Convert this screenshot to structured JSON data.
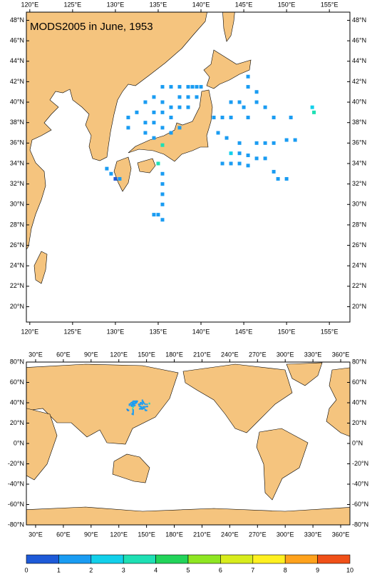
{
  "title": "MODS2005 in June, 1953",
  "regional_map": {
    "xlim": [
      119.6,
      157.4
    ],
    "ylim": [
      18.5,
      48.8
    ],
    "xticks": [
      {
        "value": 120,
        "label": "120°E"
      },
      {
        "value": 125,
        "label": "125°E"
      },
      {
        "value": 130,
        "label": "130°E"
      },
      {
        "value": 135,
        "label": "135°E"
      },
      {
        "value": 140,
        "label": "140°E"
      },
      {
        "value": 145,
        "label": "145°E"
      },
      {
        "value": 150,
        "label": "150°E"
      },
      {
        "value": 155,
        "label": "155°E"
      }
    ],
    "yticks": [
      {
        "value": 20,
        "label": "20°N"
      },
      {
        "value": 22,
        "label": "22°N"
      },
      {
        "value": 24,
        "label": "24°N"
      },
      {
        "value": 26,
        "label": "26°N"
      },
      {
        "value": 28,
        "label": "28°N"
      },
      {
        "value": 30,
        "label": "30°N"
      },
      {
        "value": 32,
        "label": "32°N"
      },
      {
        "value": 34,
        "label": "34°N"
      },
      {
        "value": 36,
        "label": "36°N"
      },
      {
        "value": 38,
        "label": "38°N"
      },
      {
        "value": 40,
        "label": "40°N"
      },
      {
        "value": 42,
        "label": "42°N"
      },
      {
        "value": 44,
        "label": "44°N"
      },
      {
        "value": 46,
        "label": "46°N"
      },
      {
        "value": 48,
        "label": "48°N"
      }
    ]
  },
  "global_map": {
    "xlim": [
      20,
      370
    ],
    "ylim": [
      -80,
      80
    ],
    "xticks": [
      {
        "value": 30,
        "label": "30°E"
      },
      {
        "value": 60,
        "label": "60°E"
      },
      {
        "value": 90,
        "label": "90°E"
      },
      {
        "value": 120,
        "label": "120°E"
      },
      {
        "value": 150,
        "label": "150°E"
      },
      {
        "value": 180,
        "label": "180°E"
      },
      {
        "value": 210,
        "label": "210°E"
      },
      {
        "value": 240,
        "label": "240°E"
      },
      {
        "value": 270,
        "label": "270°E"
      },
      {
        "value": 300,
        "label": "300°E"
      },
      {
        "value": 330,
        "label": "330°E"
      },
      {
        "value": 360,
        "label": "360°E"
      }
    ],
    "yticks": [
      {
        "value": -80,
        "label": "-80°N"
      },
      {
        "value": -60,
        "label": "-60°N"
      },
      {
        "value": -40,
        "label": "-40°N"
      },
      {
        "value": -20,
        "label": "-20°N"
      },
      {
        "value": 0,
        "label": "0°N"
      },
      {
        "value": 20,
        "label": "20°N"
      },
      {
        "value": 40,
        "label": "40°N"
      },
      {
        "value": 60,
        "label": "60°N"
      },
      {
        "value": 80,
        "label": "80°N"
      }
    ]
  },
  "colorbar": {
    "ticks": [
      0,
      1,
      2,
      3,
      4,
      5,
      6,
      7,
      8,
      9,
      10
    ],
    "colors": [
      "#1e5ad8",
      "#1a9cf2",
      "#12d0ea",
      "#1ee0b4",
      "#22d45a",
      "#8ee622",
      "#d8ec1c",
      "#fff020",
      "#ffa21c",
      "#f05018"
    ]
  },
  "observations": {
    "lon": [
      135.5,
      136.5,
      137.5,
      138.5,
      139,
      139.5,
      140,
      137.5,
      138.5,
      139.5,
      134.5,
      133.5,
      135.5,
      136.5,
      137.5,
      138.5,
      132.5,
      134.5,
      135.5,
      136.5,
      131.5,
      133.5,
      134.5,
      135.5,
      137.5,
      136.5,
      133.5,
      134.5,
      131.5,
      145.5,
      145.5,
      146.5,
      146.5,
      143.5,
      144.5,
      145,
      147.5,
      141.5,
      142.5,
      143.5,
      145.5,
      148.5,
      150.5,
      142,
      143,
      144.5,
      146.5,
      147.5,
      148.5,
      150,
      151,
      143.5,
      144.5,
      145.5,
      146.5,
      147.5,
      142.5,
      143.5,
      144.5,
      145.5,
      148.5,
      149,
      150,
      135.5,
      135.5,
      135.5,
      135.5,
      135,
      135.5,
      134.5,
      129,
      129.5,
      130,
      130.5,
      135,
      135.5,
      153,
      153.2
    ],
    "lat": [
      41.5,
      41.5,
      41.5,
      41.5,
      41.5,
      41.5,
      41.5,
      40.5,
      40.5,
      40.5,
      40.5,
      40,
      40,
      39.5,
      39.5,
      39.5,
      39,
      39,
      39,
      38.5,
      38.5,
      38,
      38,
      37.5,
      37.5,
      37,
      37,
      36.5,
      37.5,
      42.5,
      41.5,
      41,
      40,
      40,
      40,
      39.5,
      39.5,
      38.5,
      38.5,
      38.5,
      38.5,
      38.5,
      38.5,
      37,
      36.5,
      36,
      36,
      36,
      36,
      36.3,
      36.3,
      35,
      35,
      34.8,
      34.5,
      34.5,
      34,
      34,
      34,
      33.8,
      33.2,
      32.5,
      32.5,
      33,
      32,
      31,
      30,
      29,
      28.5,
      29,
      33.5,
      33,
      32.5,
      32.5,
      34,
      35.8,
      39.5,
      39
    ],
    "values": [
      1,
      1,
      1,
      1,
      1,
      1,
      1,
      1,
      1,
      1,
      1,
      1,
      1,
      1,
      1,
      1,
      1,
      1,
      1,
      1,
      1,
      1,
      1,
      1,
      1,
      1,
      1,
      1,
      1,
      1,
      1,
      1,
      1,
      1,
      1,
      1,
      1,
      1,
      1,
      1,
      1,
      1,
      1,
      1,
      1,
      1,
      1,
      1,
      1,
      1,
      1,
      2,
      1,
      1,
      1,
      1,
      1,
      1,
      1,
      1,
      1,
      1,
      1,
      1,
      1,
      1,
      1,
      1,
      1,
      1,
      1,
      1,
      0,
      1,
      3,
      3,
      2,
      3
    ]
  }
}
